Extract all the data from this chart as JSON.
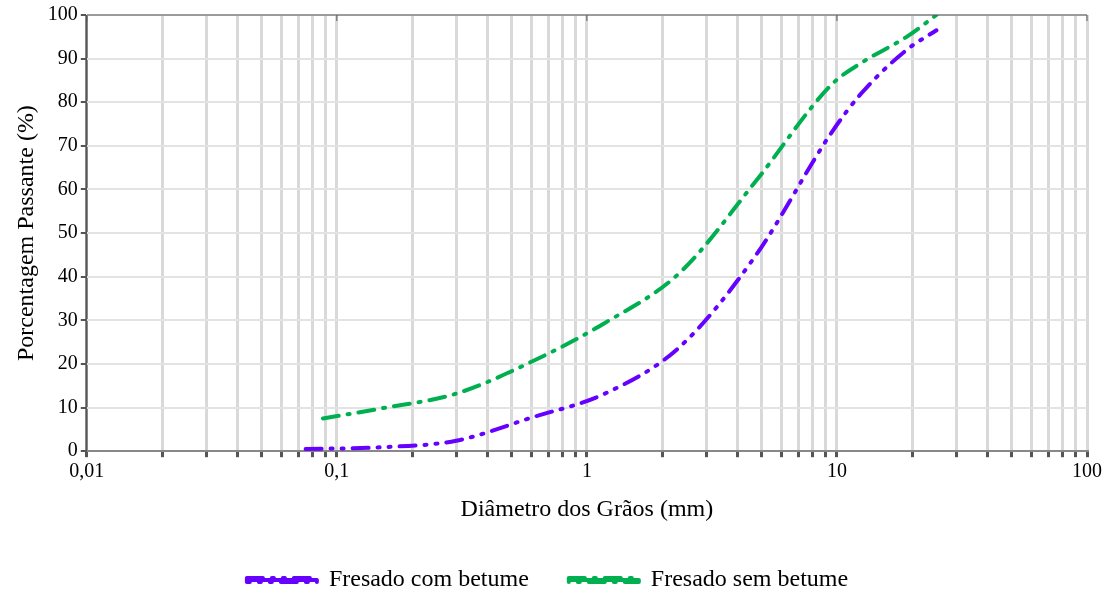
{
  "chart_data": {
    "type": "line",
    "xlabel": "Diâmetro dos Grãos (mm)",
    "ylabel": "Porcentagem Passante (%)",
    "log": "x",
    "grid": true,
    "legend": "bottom",
    "marker": "none",
    "line_style": "dashed",
    "xlim": [
      0.01,
      100
    ],
    "xticks": [
      {
        "value": 0.01,
        "label": "0,01"
      },
      {
        "value": 0.02,
        "label": null
      },
      {
        "value": 0.03,
        "label": null
      },
      {
        "value": 0.04,
        "label": null
      },
      {
        "value": 0.05,
        "label": null
      },
      {
        "value": 0.06,
        "label": null
      },
      {
        "value": 0.07,
        "label": null
      },
      {
        "value": 0.08,
        "label": null
      },
      {
        "value": 0.09,
        "label": null
      },
      {
        "value": 0.1,
        "label": "0,1"
      },
      {
        "value": 0.2,
        "label": null
      },
      {
        "value": 0.3,
        "label": null
      },
      {
        "value": 0.4,
        "label": null
      },
      {
        "value": 0.5,
        "label": null
      },
      {
        "value": 0.6,
        "label": null
      },
      {
        "value": 0.7,
        "label": null
      },
      {
        "value": 0.8,
        "label": null
      },
      {
        "value": 0.9,
        "label": null
      },
      1,
      {
        "value": 2,
        "label": null
      },
      {
        "value": 3,
        "label": null
      },
      {
        "value": 4,
        "label": null
      },
      {
        "value": 5,
        "label": null
      },
      {
        "value": 6,
        "label": null
      },
      {
        "value": 7,
        "label": null
      },
      {
        "value": 8,
        "label": null
      },
      {
        "value": 9,
        "label": null
      },
      10,
      {
        "value": 20,
        "label": null
      },
      {
        "value": 30,
        "label": null
      },
      {
        "value": 40,
        "label": null
      },
      {
        "value": 50,
        "label": null
      },
      {
        "value": 60,
        "label": null
      },
      {
        "value": 70,
        "label": null
      },
      {
        "value": 80,
        "label": null
      },
      {
        "value": 90,
        "label": null
      },
      100
    ],
    "ylim": [
      0,
      100
    ],
    "yticks": [
      0,
      10,
      20,
      30,
      40,
      50,
      60,
      70,
      80,
      90,
      100
    ],
    "series": [
      {
        "name": "Fresado com betume",
        "color": "#6600ff",
        "x": [
          0.075,
          0.15,
          0.3,
          0.6,
          1.18,
          2.36,
          4.75,
          9.5,
          12.5,
          19,
          25
        ],
        "values": [
          0.5,
          0.9,
          2.4,
          7.7,
          13.2,
          24,
          45,
          73,
          82,
          92,
          96.5
        ]
      },
      {
        "name": "Fresado sem betume",
        "color": "#00b050",
        "x": [
          0.088,
          0.15,
          0.3,
          0.6,
          1.18,
          2.36,
          4.75,
          9.5,
          12.5,
          19,
          25
        ],
        "values": [
          7.5,
          9.8,
          13.2,
          20.5,
          29.4,
          41,
          62,
          84,
          89,
          95,
          100
        ]
      }
    ]
  }
}
